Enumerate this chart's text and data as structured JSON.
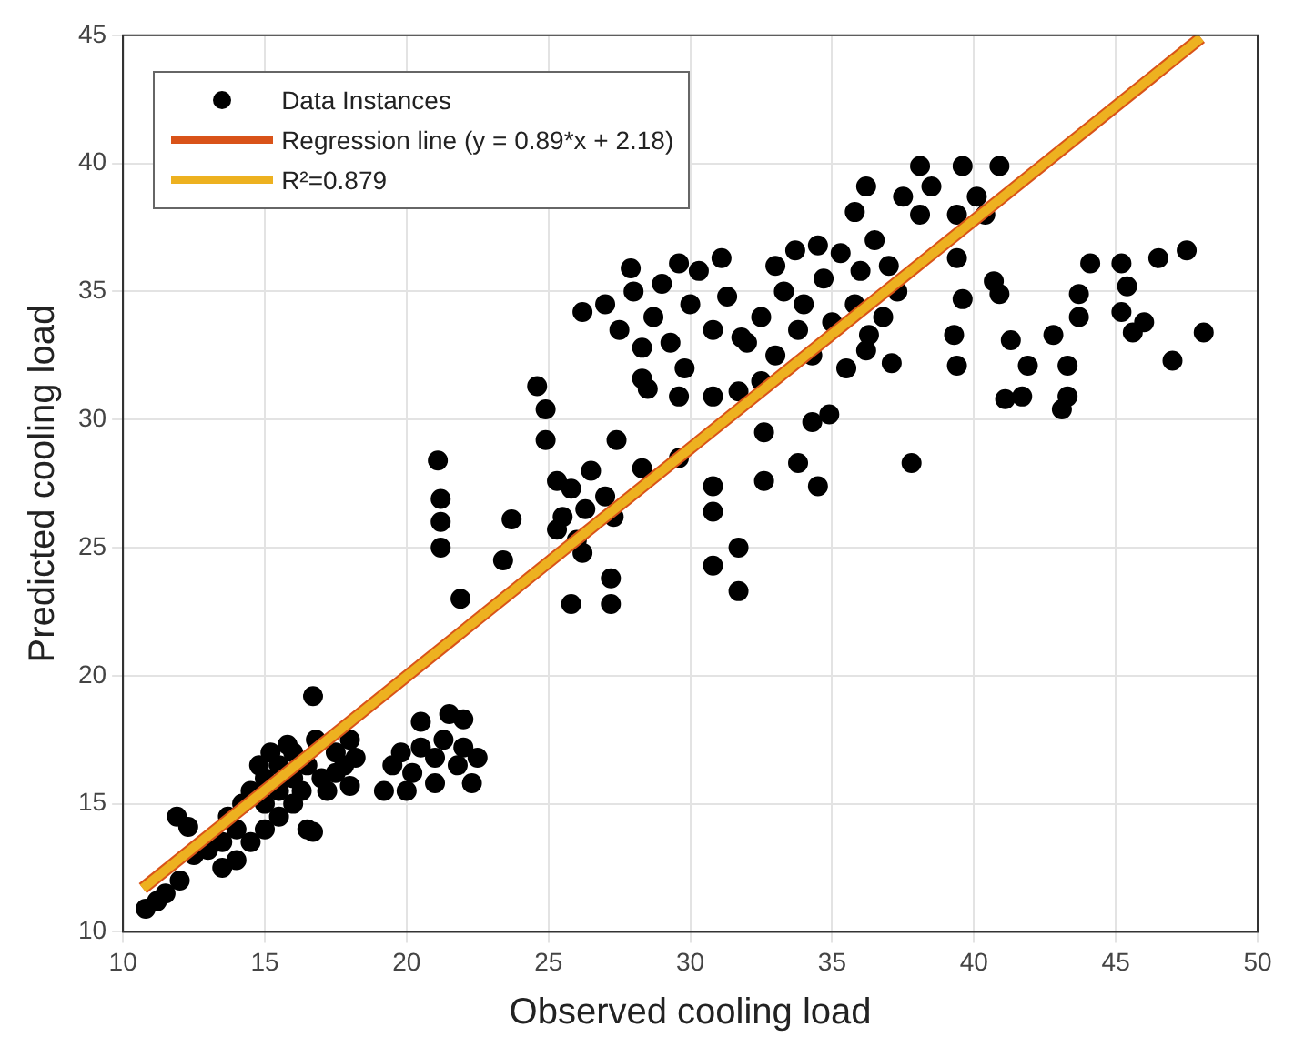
{
  "chart_data": {
    "type": "scatter",
    "xlabel": "Observed cooling load",
    "ylabel": "Predicted cooling load",
    "xlim": [
      10,
      50
    ],
    "ylim": [
      10,
      45
    ],
    "xticks": [
      10,
      15,
      20,
      25,
      30,
      35,
      40,
      45,
      50
    ],
    "yticks": [
      10,
      15,
      20,
      25,
      30,
      35,
      40,
      45
    ],
    "grid": true,
    "legend": "top left",
    "series": [
      {
        "name": "Data Instances",
        "color": "#000000",
        "marker": "circle",
        "x": [
          10.8,
          11.2,
          11.5,
          12,
          11.9,
          12.3,
          12.5,
          13,
          13.5,
          13.5,
          13.7,
          14,
          14,
          14.2,
          14.5,
          14.5,
          14.8,
          15,
          15,
          15,
          15.2,
          15.5,
          15.5,
          15.5,
          15.8,
          16,
          16,
          16,
          16.3,
          16.5,
          16.5,
          16.7,
          16.8,
          17,
          16.7,
          17.2,
          17.5,
          17.5,
          17.8,
          18,
          18,
          18.2,
          19.2,
          19.5,
          19.8,
          20,
          20.2,
          20.5,
          20.5,
          21,
          21,
          21.3,
          21.5,
          21.8,
          22,
          22.3,
          22.5,
          22,
          21.1,
          21.2,
          21.2,
          21.2,
          21.9,
          23.4,
          23.7,
          24.6,
          24.9,
          24.9,
          25.3,
          25.3,
          25.8,
          26.2,
          27.2,
          27.2,
          26.2,
          27.9,
          29.6,
          31.1,
          33.7,
          28.3,
          28.3,
          29.6,
          30.8,
          31.7,
          27.4,
          28.3,
          29.6,
          30.8,
          30.8,
          30.8,
          31.7,
          31.7,
          32.6,
          32.6,
          33.8,
          34.5,
          34.3,
          34.9,
          36.2,
          35.8,
          37.5,
          38.1,
          38.5,
          38.1,
          39.6,
          40.9,
          40.1,
          39.4,
          40.4,
          39.4,
          40.7,
          39.6,
          40.9,
          39.3,
          39.4,
          37.8,
          36.2,
          37.1,
          41.3,
          41.9,
          41.1,
          41.7,
          42.8,
          43.7,
          43.3,
          43.3,
          43.1,
          43.7,
          44.1,
          45.2,
          45.4,
          45.2,
          46,
          45.6,
          46.5,
          47.5,
          47,
          48.1,
          32,
          32.5,
          33,
          33.3,
          33.8,
          34,
          34.3,
          34.7,
          35,
          35.3,
          35.8,
          36,
          36.5,
          36.8,
          37,
          37.3,
          34.5,
          33,
          32.5,
          35.5,
          36.3,
          27,
          27.5,
          28,
          28.7,
          29,
          29.3,
          30,
          30.3,
          30.8,
          31.3,
          31.8,
          29.8,
          28.5,
          25.8,
          26.3,
          26.5,
          27,
          27.3,
          26,
          25.5
        ],
        "values": [
          10.9,
          11.2,
          11.5,
          12,
          14.5,
          14.1,
          13,
          13.2,
          12.5,
          13.5,
          14.5,
          12.8,
          14,
          15,
          13.5,
          15.5,
          16.5,
          14,
          15,
          16,
          17,
          14.5,
          15.5,
          16.5,
          17.3,
          15,
          16,
          17,
          15.5,
          16.5,
          14,
          13.9,
          17.5,
          16,
          19.2,
          15.5,
          17,
          16.2,
          16.5,
          15.7,
          17.5,
          16.8,
          15.5,
          16.5,
          17,
          15.5,
          16.2,
          17.2,
          18.2,
          15.8,
          16.8,
          17.5,
          18.5,
          16.5,
          17.2,
          15.8,
          16.8,
          18.3,
          28.4,
          26.9,
          26,
          25,
          23,
          24.5,
          26.1,
          31.3,
          30.4,
          29.2,
          27.6,
          25.7,
          22.8,
          24.8,
          23.8,
          22.8,
          34.2,
          35.9,
          36.1,
          36.3,
          36.6,
          32.8,
          31.6,
          30.9,
          30.9,
          31.1,
          29.2,
          28.1,
          28.5,
          27.4,
          26.4,
          24.3,
          25,
          23.3,
          29.5,
          27.6,
          28.3,
          27.4,
          29.9,
          30.2,
          39.1,
          38.1,
          38.7,
          39.9,
          39.1,
          38,
          39.9,
          39.9,
          38.7,
          38,
          38,
          36.3,
          35.4,
          34.7,
          34.9,
          33.3,
          32.1,
          28.3,
          32.7,
          32.2,
          33.1,
          32.1,
          30.8,
          30.9,
          33.3,
          34,
          32.1,
          30.9,
          30.4,
          34.9,
          36.1,
          36.1,
          35.2,
          34.2,
          33.8,
          33.4,
          36.3,
          36.6,
          32.3,
          33.4,
          33,
          34,
          32.5,
          35,
          33.5,
          34.5,
          32.5,
          35.5,
          33.8,
          36.5,
          34.5,
          35.8,
          37,
          34,
          36,
          35,
          36.8,
          36,
          31.5,
          32,
          33.3,
          34.5,
          33.5,
          35,
          34,
          35.3,
          33,
          34.5,
          35.8,
          33.5,
          34.8,
          33.2,
          32,
          31.2,
          27.3,
          26.5,
          28,
          27,
          26.2,
          25.3,
          26.2
        ]
      },
      {
        "name": "Regression line (y = 0.89*x + 2.18)",
        "type": "line",
        "color": "#d95319",
        "marker": "none",
        "x": [
          10.7,
          48
        ],
        "values": [
          11.7,
          44.9
        ]
      },
      {
        "name": "R²=0.879",
        "type": "line",
        "color": "#edb120",
        "marker": "none",
        "x": [
          10.7,
          48
        ],
        "values": [
          11.7,
          44.9
        ]
      }
    ]
  }
}
